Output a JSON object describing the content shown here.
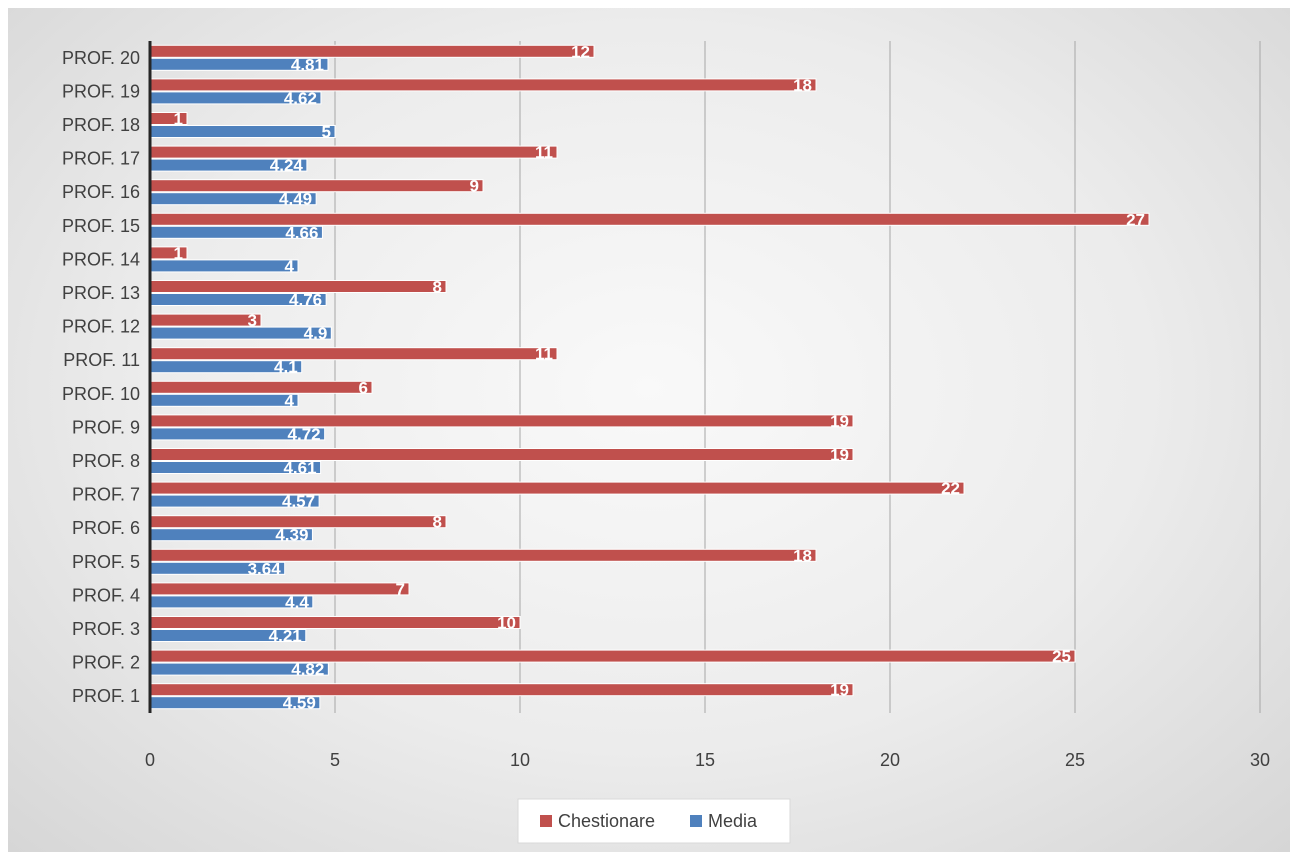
{
  "chart_data": {
    "type": "bar",
    "orientation": "horizontal",
    "categories": [
      "PROF. 1",
      "PROF. 2",
      "PROF. 3",
      "PROF. 4",
      "PROF. 5",
      "PROF. 6",
      "PROF. 7",
      "PROF. 8",
      "PROF. 9",
      "PROF. 10",
      "PROF. 11",
      "PROF. 12",
      "PROF. 13",
      "PROF. 14",
      "PROF. 15",
      "PROF. 16",
      "PROF. 17",
      "PROF. 18",
      "PROF. 19",
      "PROF. 20"
    ],
    "series": [
      {
        "name": "Chestionare",
        "color": "#c0504d",
        "values": [
          19,
          25,
          10,
          7,
          18,
          8,
          22,
          19,
          19,
          6,
          11,
          3,
          8,
          1,
          27,
          9,
          11,
          1,
          18,
          12
        ]
      },
      {
        "name": "Media",
        "color": "#4f81bd",
        "values": [
          4.59,
          4.82,
          4.21,
          4.4,
          3.64,
          4.39,
          4.57,
          4.61,
          4.72,
          4,
          4.1,
          4.9,
          4.76,
          4,
          4.66,
          4.49,
          4.24,
          5,
          4.62,
          4.81
        ]
      }
    ],
    "xlim": [
      0,
      30
    ],
    "xticks": [
      0,
      5,
      10,
      15,
      20,
      25,
      30
    ],
    "grid": "vertical",
    "legend_position": "bottom",
    "data_labels": true
  }
}
